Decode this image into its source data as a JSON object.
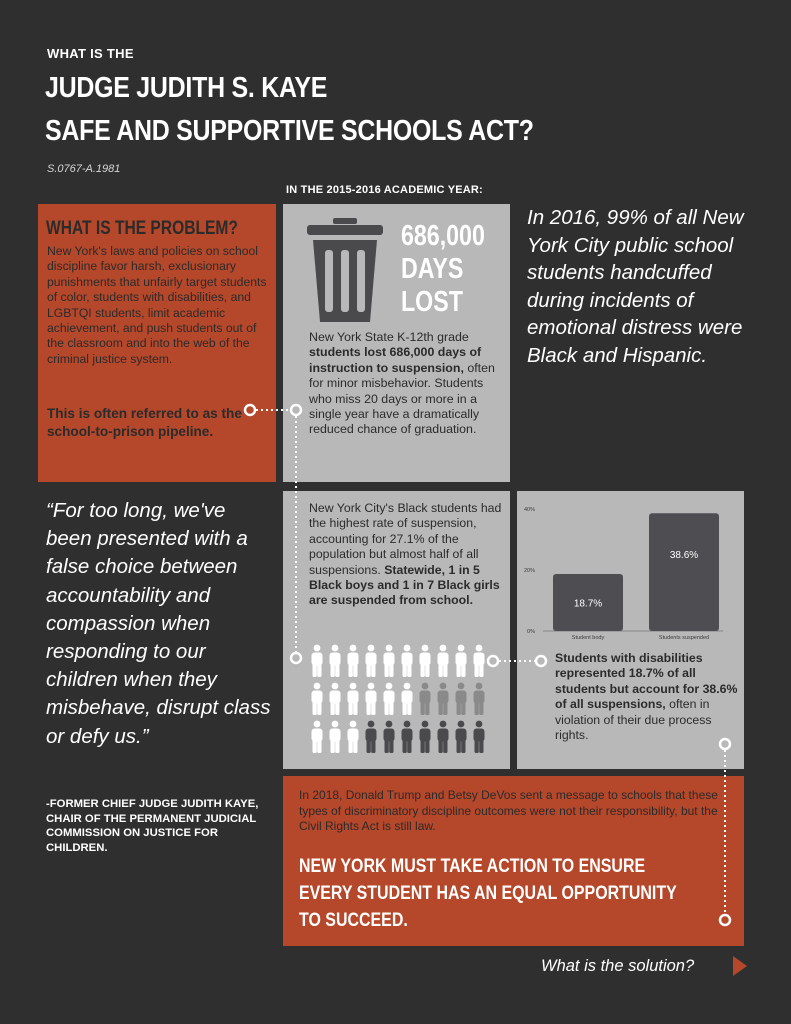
{
  "header": {
    "kicker": "WHAT IS THE",
    "title_line1": "JUDGE JUDITH S. KAYE",
    "title_line2": "SAFE AND SUPPORTIVE SCHOOLS ACT?",
    "bill_number": "S.0767-A.1981",
    "year_label": "IN THE 2015-2016 ACADEMIC YEAR:"
  },
  "problem": {
    "title": "WHAT IS THE PROBLEM?",
    "body": "New York's laws and policies on school discipline favor harsh, exclusionary punishments that unfairly target students of color, students with disabilities, and LGBTQI students, limit academic achievement, and push students out of the classroom and into the web of the criminal justice system.",
    "emphasis": "This is often referred to as the school-to-prison pipeline."
  },
  "days_lost": {
    "number": "686,000",
    "word1": "DAYS",
    "word2": "LOST",
    "text_pre": "New York State K-12th grade ",
    "text_bold": "students lost 686,000 days of instruction to suspension,",
    "text_post": " often for minor misbehavior. Students who miss 20 days or more in a single year have a dramatically reduced chance of graduation.",
    "icon": "trash-can-icon"
  },
  "nyc_quote": "In 2016, 99% of all New York City public school students handcuffed during incidents of emotional distress were Black and Hispanic.",
  "quote": {
    "text": "“For too long, we've been presented with a false choice between accountability and compassion when responding to our children when they misbehave, disrupt class or defy us.”",
    "attribution": "-FORMER CHIEF JUDGE JUDITH KAYE, CHAIR OF THE PERMANENT JUDICIAL COMMISSION ON JUSTICE FOR CHILDREN."
  },
  "black_students": {
    "text_plain": "New York City's Black students had the highest rate of suspension, accounting for 27.1% of the population but almost half of all suspensions. ",
    "text_bold": "Statewide, 1 in 5 Black boys and 1 in 7 Black girls are suspended from school.",
    "pictogram": {
      "rows": 3,
      "per_row": 10,
      "dark_counts": [
        0,
        4,
        7
      ],
      "light_color": "#ffffff",
      "mid_color": "#8a8a8a",
      "dark_color": "#4a4a4d"
    }
  },
  "disabilities": {
    "text_bold": "Students with disabilities represented 18.7% of all students but account for 38.6% of all suspensions,",
    "text_post": " often in violation of their due process rights."
  },
  "chart_data": {
    "type": "bar",
    "categories": [
      "Student body",
      "Students suspended"
    ],
    "values": [
      18.7,
      38.6
    ],
    "data_labels": [
      "18.7%",
      "38.6%"
    ],
    "yticks": [
      "0%",
      "20%",
      "40%"
    ],
    "ylim": [
      0,
      40
    ],
    "bar_color": "#4d4d52",
    "grid": false
  },
  "call_to_action": {
    "text": "In 2018, Donald Trump and Betsy DeVos sent a message to schools that these types of discriminatory discipline outcomes were not their responsibility, but the Civil Rights Act is still law.",
    "headline_line1": "NEW YORK MUST TAKE ACTION TO ENSURE",
    "headline_line2": "EVERY STUDENT HAS AN EQUAL OPPORTUNITY",
    "headline_line3": "TO SUCCEED."
  },
  "footer": {
    "next_label": "What is the solution?",
    "arrow_icon": "play-arrow-icon"
  },
  "colors": {
    "background": "#2f2f2f",
    "accent": "#b5472a",
    "panel_grey": "#b8b8b8"
  }
}
